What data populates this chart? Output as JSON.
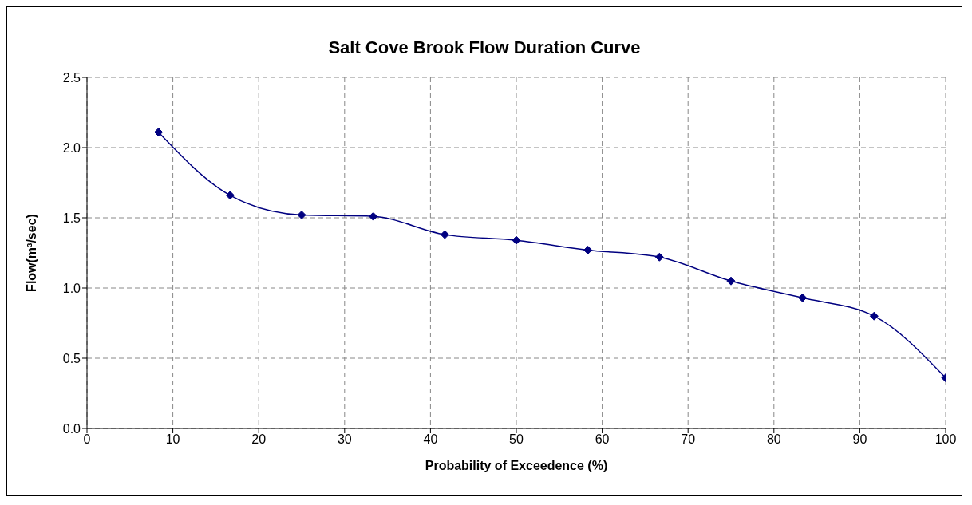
{
  "chart_data": {
    "type": "line",
    "title": "Salt Cove Brook Flow Duration Curve",
    "xlabel": "Probability of Exceedence (%)",
    "ylabel": "Flow(m³/sec)",
    "x": [
      8.33,
      16.67,
      25,
      33.33,
      41.67,
      50,
      58.33,
      66.67,
      75,
      83.33,
      91.67,
      100
    ],
    "series": [
      {
        "color": "#000080",
        "values": [
          2.11,
          1.66,
          1.52,
          1.51,
          1.38,
          1.34,
          1.27,
          1.22,
          1.05,
          0.93,
          0.8,
          0.36
        ]
      }
    ],
    "xlim": [
      0,
      100
    ],
    "xticks": [
      0,
      10,
      20,
      30,
      40,
      50,
      60,
      70,
      80,
      90,
      100
    ],
    "ylim": [
      0,
      2.5
    ],
    "yticks": [
      {
        "value": 0,
        "label": "0.0"
      },
      {
        "value": 0.5,
        "label": "0.5"
      },
      {
        "value": 1,
        "label": "1.0"
      },
      {
        "value": 1.5,
        "label": "1.5"
      },
      {
        "value": 2,
        "label": "2.0"
      },
      {
        "value": 2.5,
        "label": "2.5"
      }
    ],
    "grid": true,
    "marker": "diamond",
    "line_style": "solid"
  }
}
